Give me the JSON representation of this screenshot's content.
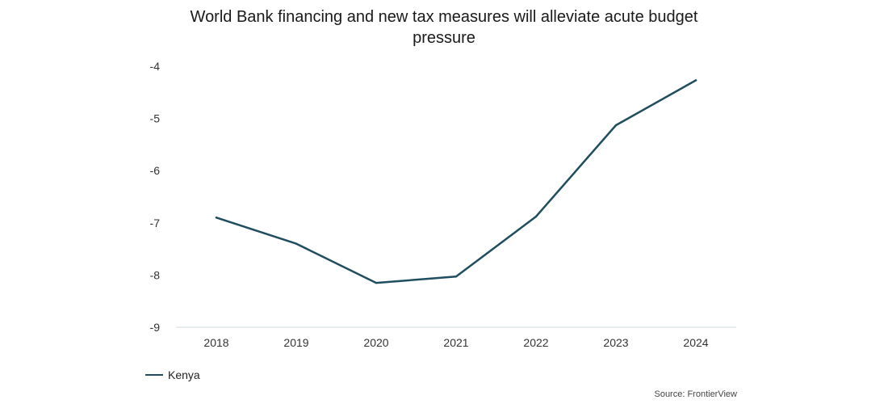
{
  "chart_data": {
    "type": "line",
    "title": "World Bank financing and new tax measures will alleviate acute budget pressure",
    "xlabel": "",
    "ylabel": "",
    "categories": [
      "2018",
      "2019",
      "2020",
      "2021",
      "2022",
      "2023",
      "2024"
    ],
    "series": [
      {
        "name": "Kenya",
        "color": "#1f4e5f",
        "values": [
          -6.9,
          -7.4,
          -8.15,
          -8.03,
          -6.88,
          -5.13,
          -4.27
        ]
      }
    ],
    "ylim": [
      -9,
      -4
    ],
    "yticks": [
      "-4",
      "-5",
      "-6",
      "-7",
      "-8",
      "-9"
    ],
    "grid": false,
    "legend_position": "bottom-left",
    "source": "Source: FrontierView"
  }
}
